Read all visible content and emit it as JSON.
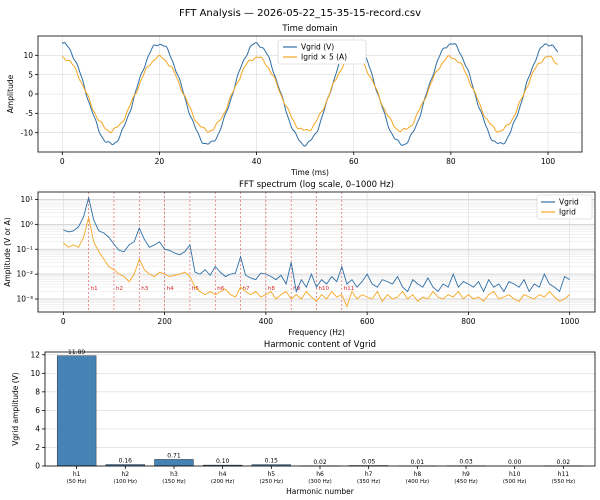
{
  "figure": {
    "suptitle": "FFT Analysis — 2026-05-22_15-35-15-record.csv"
  },
  "colors": {
    "vgrid": "#2f6fa6",
    "igrid": "#f5a623",
    "bar": "#4682b4",
    "harmonic_line": "#d62728",
    "grid": "#d9d9d9"
  },
  "chart_data": [
    {
      "type": "line",
      "title": "Time domain",
      "xlabel": "Time (ms)",
      "ylabel": "Amplitude",
      "xlim": [
        -5,
        107
      ],
      "ylim": [
        -15,
        15
      ],
      "xticks": [
        "0",
        "20",
        "40",
        "60",
        "80",
        "100"
      ],
      "yticks": [
        "-10",
        "-5",
        "0",
        "5",
        "10"
      ],
      "grid": true,
      "legend": "top-center",
      "series": [
        {
          "name": "Vgrid (V)",
          "amplitude": 13.0,
          "frequency_hz": 50,
          "phase_deg": 90,
          "x_range_ms": [
            0,
            102
          ]
        },
        {
          "name": "Igrid × 5 (A)",
          "amplitude": 9.5,
          "frequency_hz": 50,
          "phase_deg": 90,
          "x_range_ms": [
            0,
            102
          ]
        }
      ]
    },
    {
      "type": "line",
      "title": "FFT spectrum (log scale, 0–1000 Hz)",
      "xlabel": "Frequency (Hz)",
      "ylabel": "Amplitude (V or A)",
      "yscale": "log",
      "xlim": [
        -50,
        1050
      ],
      "ylim": [
        0.0003,
        20
      ],
      "xticks": [
        "0",
        "200",
        "400",
        "600",
        "800",
        "1000"
      ],
      "yticks": [
        "10⁻³",
        "10⁻²",
        "10⁻¹",
        "10⁰",
        "10¹"
      ],
      "grid": true,
      "legend": "top-right",
      "harmonic_markers": [
        {
          "label": "h1",
          "freq": 50
        },
        {
          "label": "h2",
          "freq": 100
        },
        {
          "label": "h3",
          "freq": 150
        },
        {
          "label": "h4",
          "freq": 200
        },
        {
          "label": "h5",
          "freq": 250
        },
        {
          "label": "h6",
          "freq": 300
        },
        {
          "label": "h7",
          "freq": 350
        },
        {
          "label": "h8",
          "freq": 400
        },
        {
          "label": "h9",
          "freq": 450
        },
        {
          "label": "h10",
          "freq": 500
        },
        {
          "label": "h11",
          "freq": 550
        }
      ],
      "series": [
        {
          "name": "Vgrid",
          "x": [
            0,
            10,
            20,
            30,
            40,
            50,
            60,
            70,
            80,
            90,
            100,
            110,
            120,
            130,
            140,
            150,
            160,
            170,
            180,
            190,
            200,
            210,
            220,
            230,
            240,
            250,
            260,
            270,
            280,
            290,
            300,
            310,
            320,
            330,
            340,
            350,
            360,
            370,
            380,
            390,
            400,
            410,
            420,
            430,
            440,
            450,
            460,
            470,
            480,
            490,
            500,
            510,
            520,
            530,
            540,
            550,
            560,
            570,
            580,
            590,
            600,
            610,
            620,
            630,
            640,
            650,
            660,
            670,
            680,
            690,
            700,
            710,
            720,
            730,
            740,
            750,
            760,
            770,
            780,
            790,
            800,
            810,
            820,
            830,
            840,
            850,
            860,
            870,
            880,
            890,
            900,
            910,
            920,
            930,
            940,
            950,
            960,
            970,
            980,
            990,
            1000
          ],
          "y": [
            0.6,
            0.5,
            0.55,
            0.8,
            2.0,
            11.9,
            1.5,
            0.55,
            0.45,
            0.3,
            0.16,
            0.09,
            0.08,
            0.15,
            0.2,
            0.71,
            0.25,
            0.12,
            0.15,
            0.2,
            0.1,
            0.09,
            0.07,
            0.06,
            0.08,
            0.15,
            0.012,
            0.01,
            0.015,
            0.009,
            0.02,
            0.012,
            0.008,
            0.01,
            0.011,
            0.05,
            0.009,
            0.007,
            0.006,
            0.011,
            0.01,
            0.008,
            0.006,
            0.009,
            0.004,
            0.03,
            0.002,
            0.006,
            0.003,
            0.01,
            0.003,
            0.006,
            0.004,
            0.008,
            0.005,
            0.02,
            0.004,
            0.006,
            0.003,
            0.005,
            0.01,
            0.004,
            0.003,
            0.006,
            0.005,
            0.004,
            0.008,
            0.003,
            0.002,
            0.006,
            0.004,
            0.003,
            0.007,
            0.003,
            0.002,
            0.004,
            0.003,
            0.01,
            0.003,
            0.005,
            0.004,
            0.003,
            0.005,
            0.002,
            0.006,
            0.003,
            0.004,
            0.002,
            0.005,
            0.004,
            0.003,
            0.006,
            0.002,
            0.004,
            0.003,
            0.01,
            0.004,
            0.003,
            0.002,
            0.008,
            0.006
          ]
        },
        {
          "name": "Igrid",
          "x": [
            0,
            10,
            20,
            30,
            40,
            50,
            60,
            70,
            80,
            90,
            100,
            110,
            120,
            130,
            140,
            150,
            160,
            170,
            180,
            190,
            200,
            210,
            220,
            230,
            240,
            250,
            260,
            270,
            280,
            290,
            300,
            310,
            320,
            330,
            340,
            350,
            360,
            370,
            380,
            390,
            400,
            410,
            420,
            430,
            440,
            450,
            460,
            470,
            480,
            490,
            500,
            510,
            520,
            530,
            540,
            550,
            560,
            570,
            580,
            590,
            600,
            610,
            620,
            630,
            640,
            650,
            660,
            670,
            680,
            690,
            700,
            710,
            720,
            730,
            740,
            750,
            760,
            770,
            780,
            790,
            800,
            810,
            820,
            830,
            840,
            850,
            860,
            870,
            880,
            890,
            900,
            910,
            920,
            930,
            940,
            950,
            960,
            970,
            980,
            990,
            1000
          ],
          "y": [
            0.18,
            0.12,
            0.15,
            0.12,
            0.3,
            1.9,
            0.2,
            0.08,
            0.04,
            0.02,
            0.015,
            0.01,
            0.008,
            0.005,
            0.01,
            0.04,
            0.015,
            0.01,
            0.008,
            0.012,
            0.01,
            0.008,
            0.009,
            0.01,
            0.012,
            0.008,
            0.003,
            0.002,
            0.0015,
            0.002,
            0.0015,
            0.002,
            0.0025,
            0.0015,
            0.0012,
            0.003,
            0.002,
            0.0015,
            0.002,
            0.0012,
            0.0015,
            0.002,
            0.001,
            0.0015,
            0.002,
            0.001,
            0.0015,
            0.001,
            0.002,
            0.0012,
            0.0008,
            0.0015,
            0.001,
            0.002,
            0.0012,
            0.0015,
            0.0005,
            0.002,
            0.001,
            0.0015,
            0.0012,
            0.001,
            0.002,
            0.0008,
            0.0015,
            0.001,
            0.0012,
            0.002,
            0.001,
            0.0015,
            0.0008,
            0.0012,
            0.001,
            0.002,
            0.0012,
            0.001,
            0.0015,
            0.0012,
            0.002,
            0.001,
            0.0015,
            0.001,
            0.0012,
            0.0008,
            0.0015,
            0.002,
            0.001,
            0.0012,
            0.0015,
            0.001,
            0.0008,
            0.0015,
            0.0012,
            0.001,
            0.0015,
            0.0012,
            0.002,
            0.0012,
            0.0008,
            0.001,
            0.0015
          ]
        }
      ]
    },
    {
      "type": "bar",
      "title": "Harmonic content of Vgrid",
      "xlabel": "Harmonic number",
      "ylabel": "Vgrid amplitude (V)",
      "ylim": [
        0,
        12.3
      ],
      "yticks": [
        "0",
        "2",
        "4",
        "6",
        "8",
        "10",
        "12"
      ],
      "grid": true,
      "categories": [
        "h1",
        "h2",
        "h3",
        "h4",
        "h5",
        "h6",
        "h7",
        "h8",
        "h9",
        "h10",
        "h11"
      ],
      "category_sublabels": [
        "(50 Hz)",
        "(100 Hz)",
        "(150 Hz)",
        "(200 Hz)",
        "(250 Hz)",
        "(300 Hz)",
        "(350 Hz)",
        "(400 Hz)",
        "(450 Hz)",
        "(500 Hz)",
        "(550 Hz)"
      ],
      "values": [
        11.89,
        0.16,
        0.71,
        0.1,
        0.15,
        0.02,
        0.05,
        0.01,
        0.03,
        0.0,
        0.02
      ],
      "value_labels": [
        "11.89",
        "0.16",
        "0.71",
        "0.10",
        "0.15",
        "0.02",
        "0.05",
        "0.01",
        "0.03",
        "0.00",
        "0.02"
      ]
    }
  ]
}
